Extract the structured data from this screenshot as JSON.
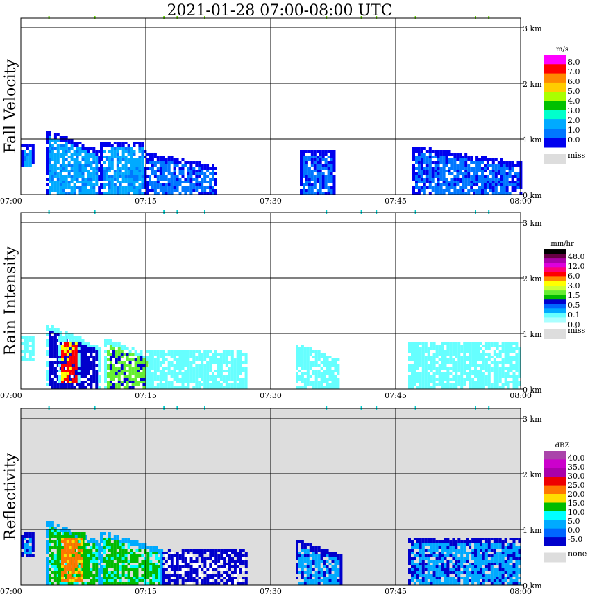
{
  "title": "2021-01-28   07:00-08:00 UTC",
  "x_ticks": [
    "07:00",
    "07:15",
    "07:30",
    "07:45",
    "08:00"
  ],
  "y_ticks": [
    "0 km",
    "1 km",
    "2 km",
    "3 km"
  ],
  "panels": [
    {
      "ylabel": "Fall Velocity",
      "background": "#ffffff",
      "colorbar": {
        "unit": "m/s",
        "labels": [
          "8.0",
          "7.0",
          "6.0",
          "5.0",
          "4.0",
          "3.0",
          "2.0",
          "1.0",
          "0.0"
        ],
        "colors": [
          "#ff00ff",
          "#ff0000",
          "#ff8800",
          "#ffcc00",
          "#aaff00",
          "#00c000",
          "#00ffcc",
          "#00aaff",
          "#0077ff",
          "#0000ee"
        ],
        "miss_label": "miss"
      }
    },
    {
      "ylabel": "Rain Intensity",
      "background": "#ffffff",
      "colorbar": {
        "unit": "mm/hr",
        "labels": [
          "48.0",
          "12.0",
          "6.0",
          "3.0",
          "1.5",
          "0.5",
          "0.1",
          "0.0"
        ],
        "colors": [
          "#000000",
          "#660044",
          "#aa00aa",
          "#dd00dd",
          "#ff0077",
          "#ff0000",
          "#ff8800",
          "#ffff00",
          "#ccff33",
          "#66ee33",
          "#00bb00",
          "#0000cc",
          "#0066ff",
          "#00aaff",
          "#66ffff",
          "#aaffff"
        ],
        "miss_label": "miss"
      }
    },
    {
      "ylabel": "Reflectivity",
      "background": "#dddddd",
      "colorbar": {
        "unit": "dBZ",
        "labels": [
          "40.0",
          "35.0",
          "30.0",
          "25.0",
          "20.0",
          "15.0",
          "10.0",
          "5.0",
          "0.0",
          "-5.0"
        ],
        "colors": [
          "#aa44aa",
          "#cc00cc",
          "#aa00aa",
          "#ee0000",
          "#ff7700",
          "#ffdd00",
          "#00bb00",
          "#00ffff",
          "#00aaff",
          "#0066ff",
          "#0000cc"
        ],
        "miss_label": "none"
      }
    }
  ],
  "chart_data": {
    "type": "heatmap",
    "title": "2021-01-28   07:00-08:00 UTC",
    "xlim": [
      "07:00",
      "08:00"
    ],
    "ylim": [
      0,
      3.2
    ],
    "y_units": "km",
    "x_units": "minutes after 07:00",
    "panels": [
      {
        "name": "Fall Velocity",
        "units": "m/s",
        "echo_regions": [
          {
            "t0": 0.0,
            "t1": 1.6,
            "h0": 0.5,
            "h1": 0.9,
            "level": 2
          },
          {
            "t0": 3.0,
            "t1": 9.5,
            "h0": 0.0,
            "h1": 1.15,
            "level": 2
          },
          {
            "t0": 9.5,
            "t1": 15.0,
            "h0": 0.0,
            "h1": 0.95,
            "level": 2
          },
          {
            "t0": 15.0,
            "t1": 23.5,
            "h0": 0.0,
            "h1": 0.75,
            "level": 1
          },
          {
            "t0": 33.5,
            "t1": 37.5,
            "h0": 0.0,
            "h1": 0.8,
            "level": 1
          },
          {
            "t0": 47.0,
            "t1": 60.0,
            "h0": 0.0,
            "h1": 0.85,
            "level": 1
          }
        ],
        "top_returns": [
          3.3,
          8.8,
          17.1,
          18.7,
          22.0,
          36.6,
          40.8,
          42.6,
          47.3,
          54.5,
          56.1
        ]
      },
      {
        "name": "Rain Intensity",
        "units": "mm/hr",
        "echo_regions": [
          {
            "t0": 0.0,
            "t1": 1.6,
            "h0": 0.5,
            "h1": 0.95,
            "level": 0.1
          },
          {
            "t0": 3.0,
            "t1": 9.5,
            "h0": 0.0,
            "h1": 1.15,
            "level": 1.0
          },
          {
            "t0": 4.5,
            "t1": 7.0,
            "h0": 0.1,
            "h1": 0.95,
            "level": 6.0
          },
          {
            "t0": 10.0,
            "t1": 15.5,
            "h0": 0.0,
            "h1": 0.9,
            "level": 1.5
          },
          {
            "t0": 15.0,
            "t1": 27.0,
            "h0": 0.0,
            "h1": 0.7,
            "level": 0.1
          },
          {
            "t0": 33.0,
            "t1": 38.0,
            "h0": 0.0,
            "h1": 0.8,
            "level": 0.1
          },
          {
            "t0": 46.5,
            "t1": 60.0,
            "h0": 0.0,
            "h1": 0.85,
            "level": 0.1
          }
        ],
        "top_returns": [
          3.3,
          8.8,
          17.1,
          18.7,
          22.0,
          36.6,
          40.8,
          42.6,
          47.3,
          54.5,
          56.1
        ]
      },
      {
        "name": "Reflectivity",
        "units": "dBZ",
        "echo_regions": [
          {
            "t0": 0.0,
            "t1": 1.6,
            "h0": 0.5,
            "h1": 0.95,
            "level": 5
          },
          {
            "t0": 3.0,
            "t1": 9.5,
            "h0": 0.0,
            "h1": 1.15,
            "level": 15
          },
          {
            "t0": 4.5,
            "t1": 7.5,
            "h0": 0.05,
            "h1": 0.95,
            "level": 25
          },
          {
            "t0": 9.5,
            "t1": 17.0,
            "h0": 0.0,
            "h1": 0.95,
            "level": 15
          },
          {
            "t0": 17.0,
            "t1": 27.0,
            "h0": 0.0,
            "h1": 0.65,
            "level": 0
          },
          {
            "t0": 33.0,
            "t1": 38.5,
            "h0": 0.0,
            "h1": 0.8,
            "level": 5
          },
          {
            "t0": 46.5,
            "t1": 60.0,
            "h0": 0.0,
            "h1": 0.85,
            "level": 5
          }
        ],
        "top_returns": [
          3.3,
          8.8,
          17.1,
          18.7,
          22.0,
          36.6,
          40.8,
          42.6,
          47.3,
          54.5,
          56.1
        ]
      }
    ]
  }
}
